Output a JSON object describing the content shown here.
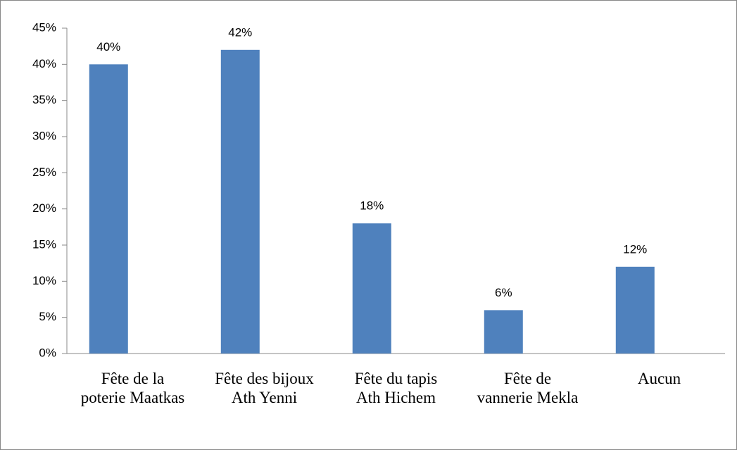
{
  "chart_data": {
    "type": "bar",
    "categories": [
      "Fête de la poterie Maatkas",
      "Fête des bijoux Ath Yenni",
      "Fête du tapis Ath Hichem",
      "Fête de vannerie Mekla",
      "Aucun"
    ],
    "values": [
      40,
      42,
      18,
      6,
      12
    ],
    "value_labels": [
      "40%",
      "42%",
      "18%",
      "6%",
      "12%"
    ],
    "color": "#4f81bd",
    "ylim": [
      0,
      45
    ],
    "yticks": [
      {
        "value": 0,
        "label": "0%"
      },
      {
        "value": 5,
        "label": "5%"
      },
      {
        "value": 10,
        "label": "10%"
      },
      {
        "value": 15,
        "label": "15%"
      },
      {
        "value": 20,
        "label": "20%"
      },
      {
        "value": 25,
        "label": "25%"
      },
      {
        "value": 30,
        "label": "30%"
      },
      {
        "value": 35,
        "label": "35%"
      },
      {
        "value": 40,
        "label": "40%"
      },
      {
        "value": 45,
        "label": "45%"
      }
    ],
    "grid": false
  }
}
